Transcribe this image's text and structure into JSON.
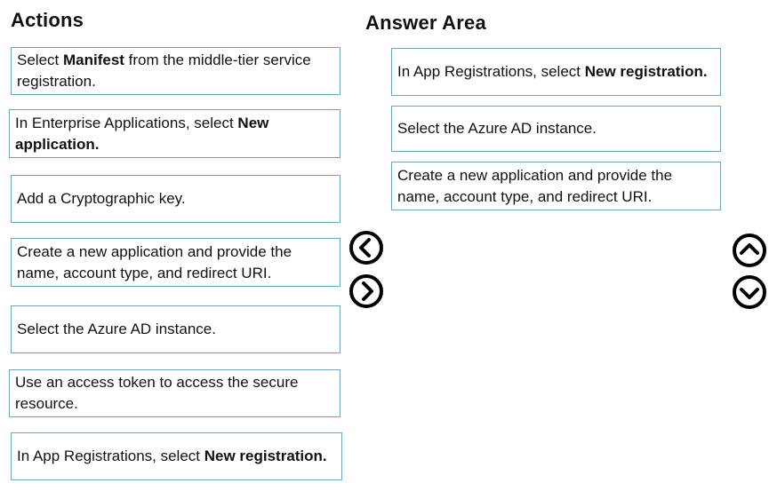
{
  "actions": {
    "title": "Actions",
    "items": [
      {
        "pre": "Select ",
        "bold": "Manifest",
        "post": " from the middle-tier service registration."
      },
      {
        "pre": "In Enterprise Applications, select ",
        "bold": "New application.",
        "post": ""
      },
      {
        "pre": "Add a Cryptographic key.",
        "bold": "",
        "post": ""
      },
      {
        "pre": "Create a new application and provide the name, account type, and redirect URI.",
        "bold": "",
        "post": ""
      },
      {
        "pre": "Select the Azure AD instance.",
        "bold": "",
        "post": ""
      },
      {
        "pre": "Use an access token to access the secure resource.",
        "bold": "",
        "post": ""
      },
      {
        "pre": "In App Registrations, select ",
        "bold": "New registration.",
        "post": ""
      }
    ]
  },
  "answer": {
    "title": "Answer Area",
    "items": [
      {
        "pre": "In App Registrations, select ",
        "bold": "New registration.",
        "post": ""
      },
      {
        "pre": "Select the Azure AD instance.",
        "bold": "",
        "post": ""
      },
      {
        "pre": "Create a new application and provide the name, account type, and redirect URI.",
        "bold": "",
        "post": ""
      }
    ]
  },
  "controls": {
    "move_left_icon": "chevron-left-circle",
    "move_right_icon": "chevron-right-circle",
    "move_up_icon": "chevron-up-circle",
    "move_down_icon": "chevron-down-circle"
  }
}
